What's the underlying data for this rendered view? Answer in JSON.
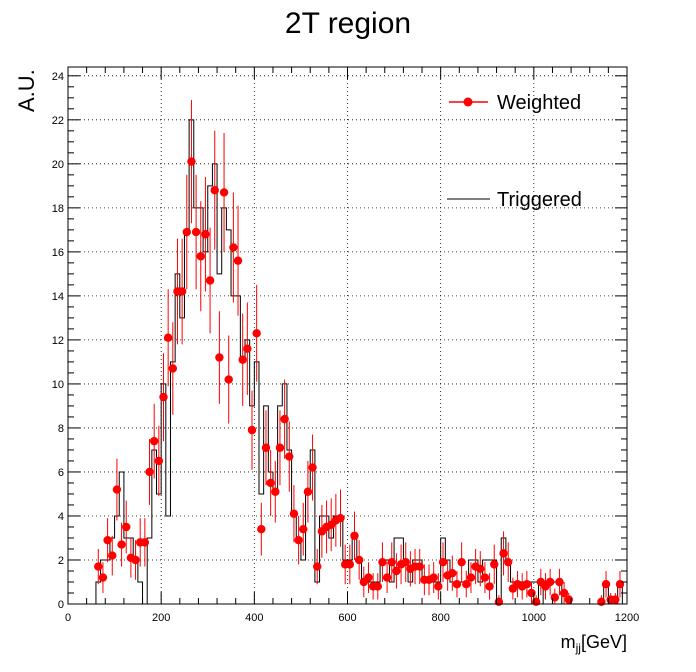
{
  "chart_data": {
    "type": "histogram",
    "title": "2T region",
    "ylabel": "A.U.",
    "xlabel_main": "m",
    "xlabel_sub": "jj",
    "xlabel_unit": "[GeV]",
    "xlim": [
      0,
      1200
    ],
    "ylim": [
      0,
      24.4
    ],
    "x_ticks": [
      0,
      200,
      400,
      600,
      800,
      1000,
      1200
    ],
    "y_ticks": [
      0,
      2,
      4,
      6,
      8,
      10,
      12,
      14,
      16,
      18,
      20,
      22,
      24
    ],
    "grid": true,
    "legend_position": "top-right",
    "bin_width": 10,
    "series": [
      {
        "name": "Weighted",
        "style": "markers-with-errors",
        "color": "#ff0000",
        "points": [
          [
            65,
            1.7,
            0.8
          ],
          [
            75,
            1.2,
            0.7
          ],
          [
            85,
            2.9,
            1.0
          ],
          [
            95,
            2.2,
            0.9
          ],
          [
            105,
            5.2,
            1.4
          ],
          [
            115,
            2.7,
            1.0
          ],
          [
            125,
            3.5,
            1.2
          ],
          [
            135,
            2.1,
            0.9
          ],
          [
            145,
            2.0,
            0.9
          ],
          [
            155,
            2.8,
            1.1
          ],
          [
            165,
            2.8,
            1.1
          ],
          [
            175,
            6.0,
            1.5
          ],
          [
            185,
            7.4,
            1.7
          ],
          [
            195,
            6.5,
            1.6
          ],
          [
            205,
            9.4,
            2.0
          ],
          [
            215,
            12.1,
            2.2
          ],
          [
            225,
            10.7,
            2.1
          ],
          [
            235,
            14.2,
            2.4
          ],
          [
            245,
            14.2,
            2.4
          ],
          [
            255,
            16.9,
            2.6
          ],
          [
            265,
            20.1,
            2.8
          ],
          [
            275,
            16.9,
            2.6
          ],
          [
            285,
            15.8,
            2.5
          ],
          [
            295,
            16.8,
            2.6
          ],
          [
            305,
            14.7,
            2.4
          ],
          [
            315,
            18.8,
            2.7
          ],
          [
            325,
            11.2,
            2.1
          ],
          [
            335,
            18.7,
            2.7
          ],
          [
            345,
            10.2,
            2.0
          ],
          [
            355,
            16.2,
            2.5
          ],
          [
            365,
            15.6,
            2.5
          ],
          [
            375,
            11.1,
            2.1
          ],
          [
            385,
            11.6,
            2.1
          ],
          [
            395,
            7.9,
            1.8
          ],
          [
            405,
            12.3,
            2.2
          ],
          [
            415,
            3.4,
            1.2
          ],
          [
            425,
            7.1,
            1.7
          ],
          [
            435,
            5.5,
            1.5
          ],
          [
            445,
            5.1,
            1.4
          ],
          [
            455,
            7.1,
            1.7
          ],
          [
            465,
            8.4,
            1.8
          ],
          [
            475,
            6.7,
            1.6
          ],
          [
            485,
            4.1,
            1.3
          ],
          [
            495,
            2.9,
            1.1
          ],
          [
            505,
            3.4,
            1.2
          ],
          [
            515,
            5.1,
            1.4
          ],
          [
            525,
            6.2,
            1.5
          ],
          [
            535,
            1.7,
            0.8
          ],
          [
            545,
            3.3,
            1.2
          ],
          [
            555,
            3.5,
            1.2
          ],
          [
            565,
            3.6,
            1.2
          ],
          [
            575,
            3.8,
            1.2
          ],
          [
            585,
            3.9,
            1.3
          ],
          [
            595,
            1.8,
            0.9
          ],
          [
            605,
            1.8,
            0.9
          ],
          [
            615,
            3.1,
            1.1
          ],
          [
            625,
            2.0,
            0.9
          ],
          [
            635,
            1.0,
            0.7
          ],
          [
            645,
            1.2,
            0.7
          ],
          [
            655,
            0.8,
            0.6
          ],
          [
            665,
            0.8,
            0.6
          ],
          [
            675,
            1.9,
            0.9
          ],
          [
            685,
            1.2,
            0.7
          ],
          [
            695,
            1.9,
            0.9
          ],
          [
            705,
            1.5,
            0.8
          ],
          [
            715,
            1.8,
            0.9
          ],
          [
            725,
            1.9,
            0.9
          ],
          [
            735,
            1.6,
            0.8
          ],
          [
            745,
            1.7,
            0.8
          ],
          [
            755,
            1.7,
            0.8
          ],
          [
            765,
            1.1,
            0.7
          ],
          [
            775,
            1.1,
            0.7
          ],
          [
            785,
            1.2,
            0.7
          ],
          [
            795,
            0.8,
            0.6
          ],
          [
            805,
            1.9,
            0.9
          ],
          [
            815,
            1.3,
            0.7
          ],
          [
            825,
            1.4,
            0.8
          ],
          [
            835,
            0.9,
            0.6
          ],
          [
            845,
            1.9,
            0.9
          ],
          [
            855,
            0.9,
            0.6
          ],
          [
            865,
            1.2,
            0.7
          ],
          [
            875,
            1.7,
            0.8
          ],
          [
            885,
            1.6,
            0.8
          ],
          [
            895,
            1.2,
            0.7
          ],
          [
            905,
            0.8,
            0.6
          ],
          [
            915,
            1.8,
            0.9
          ],
          [
            925,
            0.1,
            0.3
          ],
          [
            935,
            2.3,
            1.0
          ],
          [
            945,
            1.9,
            0.9
          ],
          [
            955,
            0.7,
            0.5
          ],
          [
            965,
            0.9,
            0.6
          ],
          [
            975,
            0.8,
            0.6
          ],
          [
            985,
            0.9,
            0.6
          ],
          [
            995,
            0.5,
            0.5
          ],
          [
            1005,
            0.1,
            0.3
          ],
          [
            1015,
            1.0,
            0.6
          ],
          [
            1025,
            0.8,
            0.6
          ],
          [
            1035,
            1.0,
            0.6
          ],
          [
            1045,
            0.3,
            0.4
          ],
          [
            1055,
            1.0,
            0.6
          ],
          [
            1065,
            0.5,
            0.5
          ],
          [
            1075,
            0.2,
            0.3
          ],
          [
            1145,
            0.1,
            0.3
          ],
          [
            1155,
            0.9,
            0.6
          ],
          [
            1165,
            0.2,
            0.3
          ],
          [
            1175,
            0.2,
            0.3
          ],
          [
            1185,
            0.9,
            0.6
          ]
        ]
      },
      {
        "name": "Triggered",
        "style": "step",
        "color": "#000000",
        "bins": [
          [
            60,
            1
          ],
          [
            70,
            2
          ],
          [
            80,
            2
          ],
          [
            90,
            3
          ],
          [
            100,
            4
          ],
          [
            110,
            6
          ],
          [
            120,
            3
          ],
          [
            130,
            3
          ],
          [
            140,
            2
          ],
          [
            150,
            1
          ],
          [
            160,
            0
          ],
          [
            170,
            3
          ],
          [
            180,
            7
          ],
          [
            190,
            5
          ],
          [
            200,
            10
          ],
          [
            210,
            4
          ],
          [
            220,
            11
          ],
          [
            230,
            15
          ],
          [
            240,
            13
          ],
          [
            250,
            17
          ],
          [
            260,
            22
          ],
          [
            270,
            18
          ],
          [
            280,
            18
          ],
          [
            290,
            16
          ],
          [
            300,
            19
          ],
          [
            310,
            20
          ],
          [
            320,
            15
          ],
          [
            330,
            18
          ],
          [
            340,
            17
          ],
          [
            350,
            14
          ],
          [
            360,
            14
          ],
          [
            370,
            11
          ],
          [
            380,
            12
          ],
          [
            390,
            9
          ],
          [
            400,
            11
          ],
          [
            410,
            5
          ],
          [
            420,
            9
          ],
          [
            430,
            6
          ],
          [
            440,
            5
          ],
          [
            450,
            9
          ],
          [
            460,
            10
          ],
          [
            470,
            7
          ],
          [
            480,
            4
          ],
          [
            490,
            3
          ],
          [
            500,
            2
          ],
          [
            510,
            5
          ],
          [
            520,
            7
          ],
          [
            530,
            1
          ],
          [
            540,
            4
          ],
          [
            550,
            4
          ],
          [
            560,
            3
          ],
          [
            570,
            4
          ],
          [
            580,
            4
          ],
          [
            590,
            2
          ],
          [
            600,
            2
          ],
          [
            610,
            3
          ],
          [
            620,
            2
          ],
          [
            630,
            1
          ],
          [
            640,
            1
          ],
          [
            650,
            1
          ],
          [
            660,
            1
          ],
          [
            670,
            2
          ],
          [
            680,
            2
          ],
          [
            690,
            1
          ],
          [
            700,
            3
          ],
          [
            710,
            3
          ],
          [
            720,
            2
          ],
          [
            730,
            1
          ],
          [
            740,
            2
          ],
          [
            750,
            2
          ],
          [
            760,
            1
          ],
          [
            770,
            1
          ],
          [
            780,
            1
          ],
          [
            790,
            1
          ],
          [
            800,
            3
          ],
          [
            810,
            2
          ],
          [
            820,
            1
          ],
          [
            830,
            1
          ],
          [
            840,
            1
          ],
          [
            850,
            1
          ],
          [
            860,
            2
          ],
          [
            870,
            2
          ],
          [
            880,
            1
          ],
          [
            890,
            2
          ],
          [
            900,
            2
          ],
          [
            910,
            2
          ],
          [
            920,
            0
          ],
          [
            930,
            3
          ],
          [
            940,
            2
          ],
          [
            950,
            1
          ],
          [
            960,
            1
          ],
          [
            970,
            1
          ],
          [
            980,
            1
          ],
          [
            990,
            1
          ],
          [
            1000,
            1
          ],
          [
            1010,
            0
          ],
          [
            1020,
            1
          ],
          [
            1030,
            1
          ],
          [
            1040,
            1
          ],
          [
            1050,
            1
          ],
          [
            1060,
            0
          ],
          [
            1070,
            0
          ],
          [
            1080,
            0
          ],
          [
            1090,
            0
          ],
          [
            1100,
            0
          ],
          [
            1110,
            0
          ],
          [
            1120,
            0
          ],
          [
            1130,
            0
          ],
          [
            1140,
            0
          ],
          [
            1150,
            1
          ],
          [
            1160,
            0
          ],
          [
            1170,
            0
          ],
          [
            1180,
            1
          ],
          [
            1190,
            0
          ]
        ]
      }
    ]
  }
}
